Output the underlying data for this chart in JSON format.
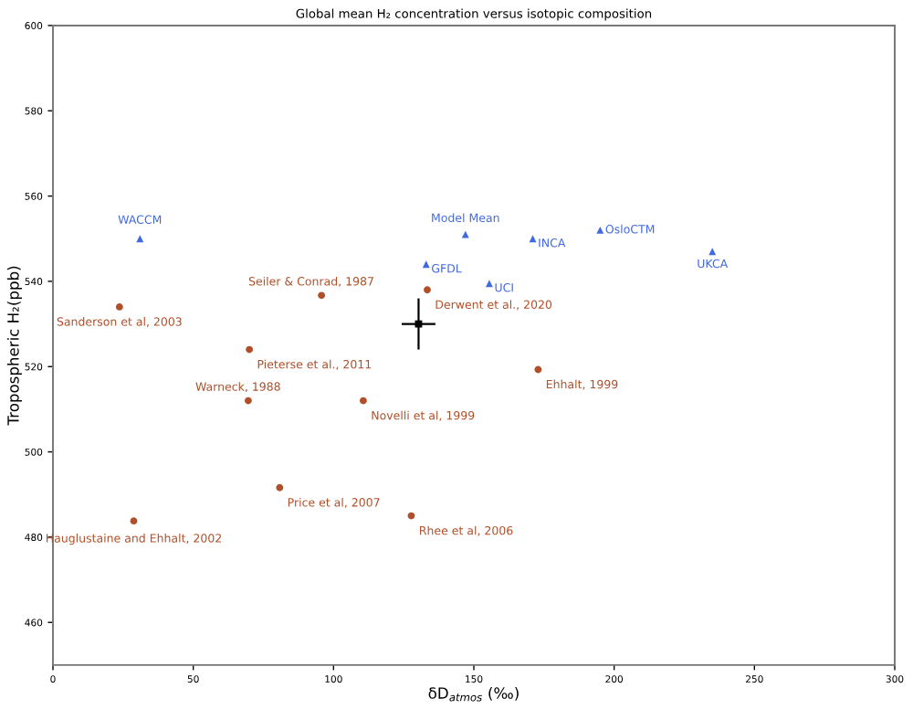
{
  "chart_data": {
    "type": "scatter",
    "title": "Global mean H₂ concentration versus isotopic composition",
    "xlabel": "δD$_{atmos}$ (‰)",
    "ylabel": "Tropospheric H₂(ppb)",
    "xlim": [
      0,
      300
    ],
    "xticks": [
      0,
      50,
      100,
      150,
      200,
      250,
      300
    ],
    "ylim": [
      450,
      600
    ],
    "yticks": [
      460,
      480,
      500,
      520,
      540,
      560,
      580,
      600
    ],
    "grid": false,
    "legend": false,
    "series": [
      {
        "color": "#4169e1",
        "marker": "triangle",
        "x": [
          31,
          147,
          133,
          171,
          195,
          235,
          155.5
        ],
        "values": [
          550,
          551,
          544,
          550,
          552,
          547,
          539.5
        ]
      },
      {
        "color": "#b0502a",
        "marker": "circle",
        "x": [
          23.7,
          95.7,
          70,
          69.6,
          110.6,
          80.8,
          28.8,
          127.7,
          133.4,
          172.9
        ],
        "values": [
          534,
          536.7,
          524,
          512,
          512,
          491.6,
          483.8,
          485,
          538,
          519.3
        ]
      },
      {
        "color": "#000000",
        "marker": "square",
        "x": [
          130.3
        ],
        "values": [
          530
        ],
        "errors": [
          6
        ],
        "xerrors": [
          6
        ]
      }
    ],
    "annotations": [
      {
        "text": "WACCM",
        "x": 31,
        "y": 550
      },
      {
        "text": "Model Mean",
        "x": 147,
        "y": 551
      },
      {
        "text": "GFDL",
        "x": 133,
        "y": 544
      },
      {
        "text": "INCA",
        "x": 171,
        "y": 550
      },
      {
        "text": "OsloCTM",
        "x": 195,
        "y": 552
      },
      {
        "text": "UKCA",
        "x": 235,
        "y": 547
      },
      {
        "text": "UCI",
        "x": 155.5,
        "y": 539.5
      },
      {
        "text": "Sanderson et al, 2003",
        "x": 23.7,
        "y": 534
      },
      {
        "text": "Seiler & Conrad, 1987",
        "x": 95.7,
        "y": 536.7
      },
      {
        "text": "Pieterse et al., 2011",
        "x": 70,
        "y": 524
      },
      {
        "text": "Warneck, 1988",
        "x": 69.6,
        "y": 512
      },
      {
        "text": "Novelli et al, 1999",
        "x": 110.6,
        "y": 512
      },
      {
        "text": "Price et al, 2007",
        "x": 80.8,
        "y": 491.6
      },
      {
        "text": "Hauglustaine and Ehhalt, 2002",
        "x": 28.8,
        "y": 483.8
      },
      {
        "text": "Rhee et al, 2006",
        "x": 127.7,
        "y": 485
      },
      {
        "text": "Derwent et al., 2020",
        "x": 133.4,
        "y": 538
      },
      {
        "text": "Ehhalt, 1999",
        "x": 172.9,
        "y": 519.3
      }
    ]
  }
}
